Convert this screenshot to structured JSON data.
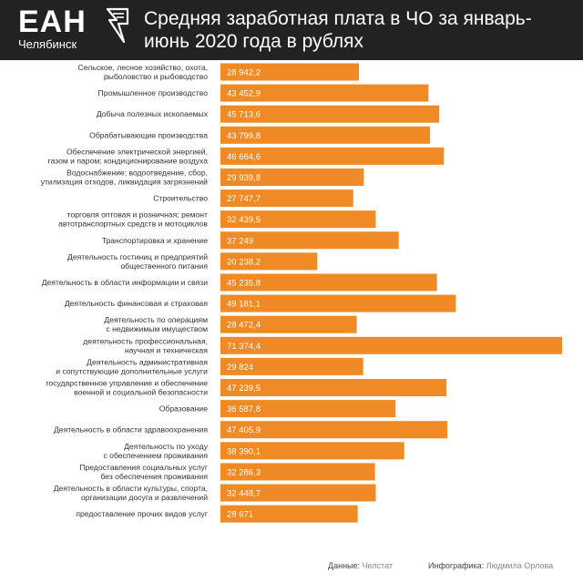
{
  "brand": {
    "logo": "ЕАН",
    "city": "Челябинск"
  },
  "title": "Средняя заработная плата в ЧО за январь-июнь 2020 года в рублях",
  "footer": {
    "source_label": "Данные:",
    "source_value": "Челстат",
    "infographic_label": "Инфографика:",
    "infographic_value": "Людмила Орлова"
  },
  "colors": {
    "bar": "#F08A24",
    "header_bg": "#222222",
    "value_text": "#ffffff",
    "label_text": "#333333"
  },
  "chart_data": {
    "type": "bar",
    "orientation": "horizontal",
    "title": "Средняя заработная плата в ЧО за январь-июнь 2020 года в рублях",
    "xlim": [
      0,
      71374.4
    ],
    "categories": [
      [
        "Сельское, лесное хозяйство, охота,",
        "рыболовство и рыбоводство"
      ],
      [
        "Промышленное производство"
      ],
      [
        "Добыча полезных ископаемых"
      ],
      [
        "Обрабатывающие производства"
      ],
      [
        "Обеспечение электрической энергией,",
        "газом и паром; кондиционирование воздуха"
      ],
      [
        "Водоснабжение; водоотведение, сбор,",
        "утилизация отходов, ликвидация загрязнений"
      ],
      [
        "Строительство"
      ],
      [
        "торговля оптовая и розничная; ремонт",
        "автотранспортных средств и мотоциклов"
      ],
      [
        "Транспортировка и хранение"
      ],
      [
        "Деятельность гостиниц и предприятий",
        "общественного питания"
      ],
      [
        "Деятельность в области информации и связи"
      ],
      [
        "Деятельность финансовая и страховая"
      ],
      [
        "Деятельность по операциям",
        "с недвижимым имуществом"
      ],
      [
        "деятельность профессиональная,",
        "научная и техническая"
      ],
      [
        "Деятельность административная",
        "и сопутствующие дополнительные услуги"
      ],
      [
        "государственное управление и обеспечение",
        "военной и социальной безопасности"
      ],
      [
        "Образование"
      ],
      [
        "Деятельность в области здравоохранения"
      ],
      [
        "Деятельность по уходу",
        "с обеспечением проживания"
      ],
      [
        "Предоставления социальных услуг",
        "без обеспечения проживания"
      ],
      [
        "Деятельность в области культуры, спорта,",
        "организации досуга и развлечений"
      ],
      [
        "предоставление прочих видов услуг"
      ]
    ],
    "values": [
      28942.2,
      43452.9,
      45713.6,
      43799.8,
      46664.6,
      29939.8,
      27747.7,
      32439.5,
      37249,
      20238.2,
      45235.8,
      49181.1,
      28472.4,
      71374.4,
      29824,
      47239.5,
      36587.8,
      47405.9,
      38390.1,
      32286.3,
      32448.7,
      28671
    ],
    "value_labels": [
      "28 942,2",
      "43 452,9",
      "45 713,6",
      "43 799,8",
      "46 664,6",
      "29 939,8",
      "27 747,7",
      "32 439,5",
      "37 249",
      "20 238,2",
      "45 235,8",
      "49 181,1",
      "28 472,4",
      "71 374,4",
      "29 824",
      "47 239,5",
      "36 587,8",
      "47 405,9",
      "38 390,1",
      "32 286,3",
      "32 448,7",
      "28 671"
    ]
  }
}
